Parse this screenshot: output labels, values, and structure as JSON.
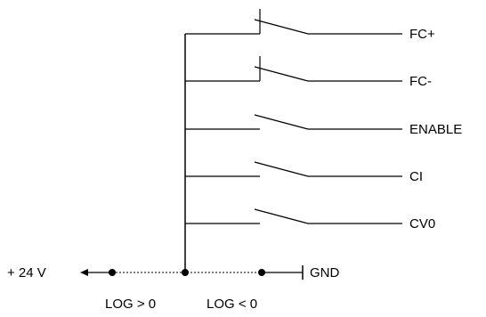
{
  "switches": [
    {
      "label": "FC+",
      "has_tick": true
    },
    {
      "label": "FC-",
      "has_tick": true
    },
    {
      "label": "ENABLE",
      "has_tick": false
    },
    {
      "label": "CI",
      "has_tick": false
    },
    {
      "label": "CV0",
      "has_tick": false
    }
  ],
  "bottom": {
    "supply_label": "+ 24 V",
    "gnd_label": "GND",
    "log_pos_label": "LOG > 0",
    "log_neg_label": "LOG < 0"
  }
}
